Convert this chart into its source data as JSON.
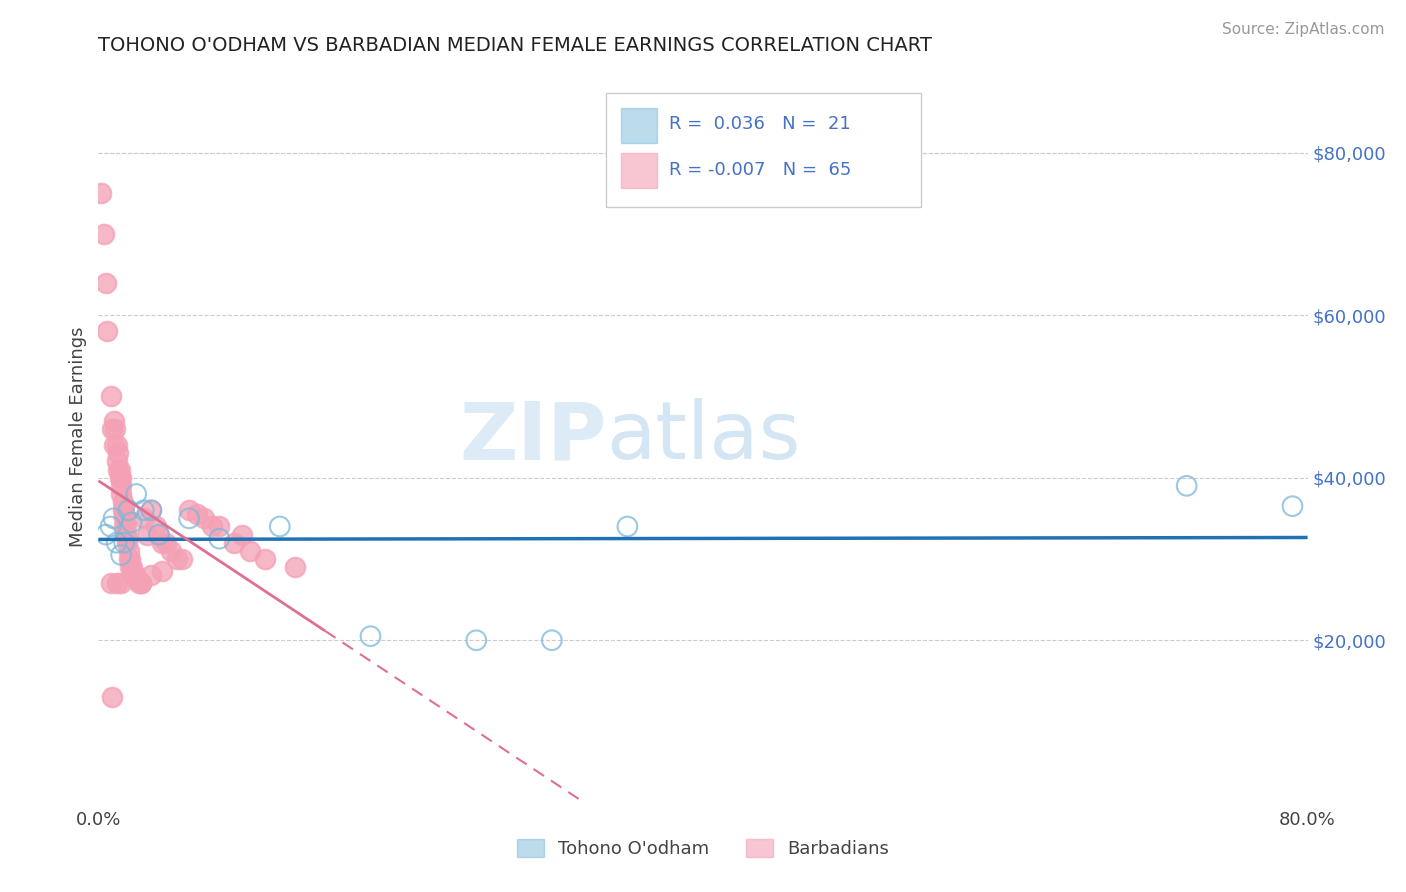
{
  "title": "TOHONO O'ODHAM VS BARBADIAN MEDIAN FEMALE EARNINGS CORRELATION CHART",
  "source": "Source: ZipAtlas.com",
  "ylabel": "Median Female Earnings",
  "xlim": [
    0.0,
    0.8
  ],
  "ylim": [
    0,
    90000
  ],
  "xtick_labels": [
    "0.0%",
    "",
    "",
    "",
    "80.0%"
  ],
  "xtick_vals": [
    0.0,
    0.2,
    0.4,
    0.6,
    0.8
  ],
  "ytick_labels": [
    "$20,000",
    "$40,000",
    "$60,000",
    "$80,000"
  ],
  "ytick_vals": [
    20000,
    40000,
    60000,
    80000
  ],
  "blue_color_face": "none",
  "blue_color_edge": "#7ab8d9",
  "pink_color_face": "#f4a0b5",
  "pink_color_edge": "#f4a0b5",
  "blue_line_color": "#2171b5",
  "pink_line_color": "#e07090",
  "legend_text_color": "#4472c4",
  "grid_color": "#cccccc",
  "background_color": "#ffffff",
  "watermark_zip": "ZIP",
  "watermark_atlas": "atlas",
  "blue_x": [
    0.005,
    0.008,
    0.01,
    0.012,
    0.015,
    0.017,
    0.02,
    0.022,
    0.025,
    0.03,
    0.035,
    0.04,
    0.06,
    0.08,
    0.12,
    0.18,
    0.25,
    0.3,
    0.35,
    0.72,
    0.79
  ],
  "blue_y": [
    33000,
    34000,
    35000,
    32000,
    30500,
    32000,
    36000,
    34500,
    38000,
    36000,
    36000,
    33000,
    35000,
    32500,
    34000,
    20500,
    20000,
    20000,
    34000,
    39000,
    36500
  ],
  "pink_x": [
    0.002,
    0.004,
    0.005,
    0.006,
    0.008,
    0.009,
    0.01,
    0.01,
    0.011,
    0.012,
    0.012,
    0.013,
    0.013,
    0.014,
    0.014,
    0.015,
    0.015,
    0.015,
    0.016,
    0.016,
    0.017,
    0.017,
    0.017,
    0.018,
    0.018,
    0.019,
    0.019,
    0.02,
    0.02,
    0.021,
    0.021,
    0.022,
    0.022,
    0.023,
    0.024,
    0.025,
    0.027,
    0.028,
    0.03,
    0.032,
    0.035,
    0.038,
    0.04,
    0.042,
    0.045,
    0.048,
    0.052,
    0.055,
    0.06,
    0.065,
    0.07,
    0.075,
    0.08,
    0.09,
    0.095,
    0.1,
    0.11,
    0.13,
    0.015,
    0.028,
    0.035,
    0.042,
    0.008,
    0.012,
    0.009
  ],
  "pink_y": [
    75000,
    70000,
    64000,
    58000,
    50000,
    46000,
    47000,
    44000,
    46000,
    44000,
    42000,
    43000,
    41000,
    41000,
    40000,
    40000,
    39000,
    38000,
    37000,
    36000,
    35500,
    35000,
    34000,
    34000,
    33000,
    32500,
    32000,
    31000,
    30000,
    30000,
    29000,
    29000,
    28000,
    28000,
    28000,
    27500,
    27000,
    27000,
    35000,
    33000,
    36000,
    34000,
    33000,
    32000,
    32000,
    31000,
    30000,
    30000,
    36000,
    35500,
    35000,
    34000,
    34000,
    32000,
    33000,
    31000,
    30000,
    29000,
    27000,
    27000,
    28000,
    28500,
    27000,
    27000,
    13000
  ]
}
